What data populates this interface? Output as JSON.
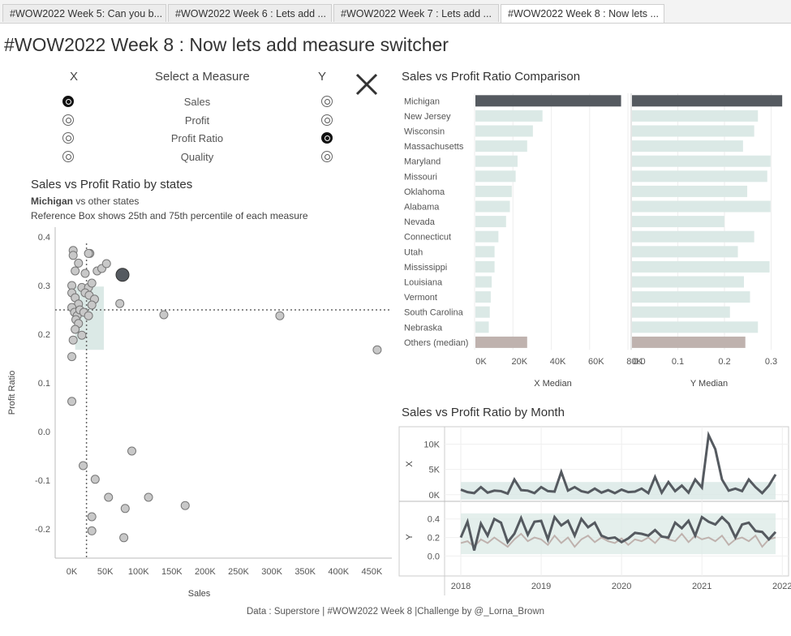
{
  "tabs": [
    {
      "label": "#WOW2022 Week 5: Can you b..."
    },
    {
      "label": "#WOW2022 Week 6 : Lets add ..."
    },
    {
      "label": "#WOW2022 Week 7 : Lets add ..."
    },
    {
      "label": "#WOW2022 Week 8 : Now lets ..."
    }
  ],
  "page_title": "#WOW2022 Week 8 : Now lets add measure switcher",
  "selector": {
    "x_header": "X",
    "title": "Select a Measure",
    "y_header": "Y",
    "measures": [
      {
        "label": "Sales",
        "x_selected": true,
        "y_selected": false
      },
      {
        "label": "Profit",
        "x_selected": false,
        "y_selected": false
      },
      {
        "label": "Profit Ratio",
        "x_selected": false,
        "y_selected": true
      },
      {
        "label": "Quality",
        "x_selected": false,
        "y_selected": false
      }
    ],
    "close_icon": "close-icon"
  },
  "scatter": {
    "title": "Sales vs Profit Ratio by states",
    "subtitle_bold": "Michigan",
    "subtitle_rest": " vs other states",
    "note": "Reference Box shows 25th and 75th percentile of each measure",
    "xlabel": "Sales",
    "ylabel": "Profit Ratio",
    "xticks": [
      "0K",
      "50K",
      "100K",
      "150K",
      "200K",
      "250K",
      "300K",
      "350K",
      "400K",
      "450K"
    ],
    "yticks": [
      "0.4",
      "0.3",
      "0.2",
      "0.1",
      "0.0",
      "-0.1",
      "-0.2"
    ]
  },
  "comparison": {
    "title": "Sales vs Profit Ratio Comparison",
    "states": [
      "Michigan",
      "New Jersey",
      "Wisconsin",
      "Massachusetts",
      "Maryland",
      "Missouri",
      "Oklahoma",
      "Alabama",
      "Nevada",
      "Connecticut",
      "Utah",
      "Mississippi",
      "Louisiana",
      "Vermont",
      "South Carolina",
      "Nebraska",
      "Others (median)"
    ],
    "x_axis_title": "X Median",
    "y_axis_title": "Y Median",
    "x_ticks": [
      "0K",
      "20K",
      "40K",
      "60K",
      "80K"
    ],
    "y_ticks": [
      "0.0",
      "0.1",
      "0.2",
      "0.3"
    ]
  },
  "monthly": {
    "title": "Sales vs Profit Ratio by Month",
    "x_axis_label": "X",
    "y_axis_label": "Y",
    "x_ticks_top": [
      "10K",
      "5K",
      "0K"
    ],
    "y_ticks_bottom": [
      "0.4",
      "0.2",
      "0.0"
    ],
    "years": [
      "2018",
      "2019",
      "2020",
      "2021",
      "2022"
    ]
  },
  "footer": "Data : Superstore | #WOW2022 Week 8 |Challenge by @_Lorna_Brown",
  "colors": {
    "highlight": "#555a60",
    "others_bar": "#dbe9e6",
    "median_bar": "#bfb2ae",
    "ref_box": "#dbe9e6",
    "dot": "#c8c8c8"
  },
  "chart_data": [
    {
      "type": "scatter",
      "title": "Sales vs Profit Ratio by states",
      "xlabel": "Sales",
      "ylabel": "Profit Ratio",
      "xlim": [
        -25000,
        480000
      ],
      "ylim": [
        -0.26,
        0.42
      ],
      "reference_lines": {
        "x_median": 22000,
        "y_median": 0.25
      },
      "reference_box": {
        "x": [
          5000,
          48000
        ],
        "y": [
          0.168,
          0.298
        ]
      },
      "highlight": {
        "name": "Michigan",
        "x": 76000,
        "y": 0.322
      },
      "points": [
        [
          2000,
          0.372
        ],
        [
          2000,
          0.362
        ],
        [
          10000,
          0.346
        ],
        [
          0,
          0.3
        ],
        [
          5000,
          0.33
        ],
        [
          15000,
          0.296
        ],
        [
          25000,
          0.296
        ],
        [
          27000,
          0.366
        ],
        [
          25000,
          0.366
        ],
        [
          20000,
          0.325
        ],
        [
          30000,
          0.305
        ],
        [
          38000,
          0.33
        ],
        [
          45000,
          0.335
        ],
        [
          52000,
          0.345
        ],
        [
          0,
          0.285
        ],
        [
          5000,
          0.275
        ],
        [
          10000,
          0.262
        ],
        [
          20000,
          0.285
        ],
        [
          26000,
          0.28
        ],
        [
          34000,
          0.272
        ],
        [
          30000,
          0.26
        ],
        [
          0,
          0.255
        ],
        [
          4000,
          0.245
        ],
        [
          8000,
          0.238
        ],
        [
          12000,
          0.25
        ],
        [
          18000,
          0.245
        ],
        [
          25000,
          0.238
        ],
        [
          6000,
          0.23
        ],
        [
          10000,
          0.222
        ],
        [
          5000,
          0.21
        ],
        [
          15000,
          0.198
        ],
        [
          2000,
          0.188
        ],
        [
          0,
          0.154
        ],
        [
          0,
          0.062
        ],
        [
          72000,
          0.263
        ],
        [
          138000,
          0.24
        ],
        [
          312000,
          0.238
        ],
        [
          458000,
          0.168
        ],
        [
          90000,
          -0.04
        ],
        [
          17000,
          -0.07
        ],
        [
          35000,
          -0.098
        ],
        [
          55000,
          -0.135
        ],
        [
          115000,
          -0.135
        ],
        [
          80000,
          -0.158
        ],
        [
          170000,
          -0.152
        ],
        [
          30000,
          -0.175
        ],
        [
          30000,
          -0.204
        ],
        [
          78000,
          -0.218
        ]
      ]
    },
    {
      "type": "bar",
      "title": "Sales vs Profit Ratio Comparison",
      "orientation": "horizontal",
      "categories": [
        "Michigan",
        "New Jersey",
        "Wisconsin",
        "Massachusetts",
        "Maryland",
        "Missouri",
        "Oklahoma",
        "Alabama",
        "Nevada",
        "Connecticut",
        "Utah",
        "Mississippi",
        "Louisiana",
        "Vermont",
        "South Carolina",
        "Nebraska",
        "Others (median)"
      ],
      "series": [
        {
          "name": "X Median",
          "xlim": [
            0,
            80000
          ],
          "values": [
            76000,
            35000,
            30000,
            27000,
            22000,
            21000,
            19000,
            18000,
            16000,
            12000,
            10000,
            10000,
            8500,
            8000,
            7500,
            7000,
            27000
          ]
        },
        {
          "name": "Y Median",
          "xlim": [
            0,
            0.32
          ],
          "values": [
            0.322,
            0.27,
            0.262,
            0.238,
            0.297,
            0.29,
            0.247,
            0.297,
            0.198,
            0.262,
            0.227,
            0.295,
            0.24,
            0.253,
            0.21,
            0.27,
            0.243
          ]
        }
      ]
    },
    {
      "type": "line",
      "title": "Sales vs Profit Ratio by Month",
      "x": [
        "2018-01",
        "2018-02",
        "2018-03",
        "2018-04",
        "2018-05",
        "2018-06",
        "2018-07",
        "2018-08",
        "2018-09",
        "2018-10",
        "2018-11",
        "2018-12",
        "2019-01",
        "2019-02",
        "2019-03",
        "2019-04",
        "2019-05",
        "2019-06",
        "2019-07",
        "2019-08",
        "2019-09",
        "2019-10",
        "2019-11",
        "2019-12",
        "2020-01",
        "2020-02",
        "2020-03",
        "2020-04",
        "2020-05",
        "2020-06",
        "2020-07",
        "2020-08",
        "2020-09",
        "2020-10",
        "2020-11",
        "2020-12",
        "2021-01",
        "2021-02",
        "2021-03",
        "2021-04",
        "2021-05",
        "2021-06",
        "2021-07",
        "2021-08",
        "2021-09",
        "2021-10",
        "2021-11",
        "2021-12"
      ],
      "series": [
        {
          "name": "X",
          "ylim": [
            -1000,
            12500
          ],
          "values": [
            1000,
            500,
            300,
            1500,
            400,
            800,
            700,
            200,
            3000,
            900,
            800,
            300,
            1500,
            700,
            600,
            4500,
            800,
            1500,
            700,
            400,
            1200,
            400,
            900,
            300,
            1000,
            500,
            600,
            1200,
            300,
            3500,
            400,
            2500,
            700,
            1800,
            400,
            3000,
            1400,
            11800,
            9000,
            3000,
            800,
            1200,
            700,
            3000,
            1500,
            300,
            1800,
            4000
          ]
        },
        {
          "name": "Y",
          "ylim": [
            -0.18,
            0.52
          ],
          "values": [
            0.2,
            0.37,
            0.06,
            0.35,
            0.22,
            0.4,
            0.36,
            0.15,
            0.24,
            0.41,
            0.23,
            0.37,
            0.38,
            0.18,
            0.42,
            0.33,
            0.38,
            0.22,
            0.4,
            0.31,
            0.36,
            0.22,
            0.19,
            0.2,
            0.15,
            0.19,
            0.25,
            0.24,
            0.22,
            0.28,
            0.21,
            0.2,
            0.36,
            0.3,
            0.38,
            0.22,
            0.42,
            0.37,
            0.34,
            0.42,
            0.35,
            0.2,
            0.34,
            0.36,
            0.27,
            0.26,
            0.18,
            0.26
          ]
        },
        {
          "name": "Y (median)",
          "ylim": [
            -0.18,
            0.52
          ],
          "values": [
            0.14,
            0.16,
            0.1,
            0.18,
            0.14,
            0.2,
            0.15,
            0.1,
            0.18,
            0.24,
            0.16,
            0.2,
            0.18,
            0.12,
            0.22,
            0.14,
            0.2,
            0.1,
            0.18,
            0.22,
            0.15,
            0.2,
            0.16,
            0.14,
            0.19,
            0.12,
            0.18,
            0.16,
            0.2,
            0.14,
            0.22,
            0.18,
            0.16,
            0.24,
            0.15,
            0.22,
            0.18,
            0.2,
            0.16,
            0.22,
            0.12,
            0.18,
            0.2,
            0.16,
            0.22,
            0.1,
            0.18,
            0.2
          ]
        }
      ]
    }
  ]
}
